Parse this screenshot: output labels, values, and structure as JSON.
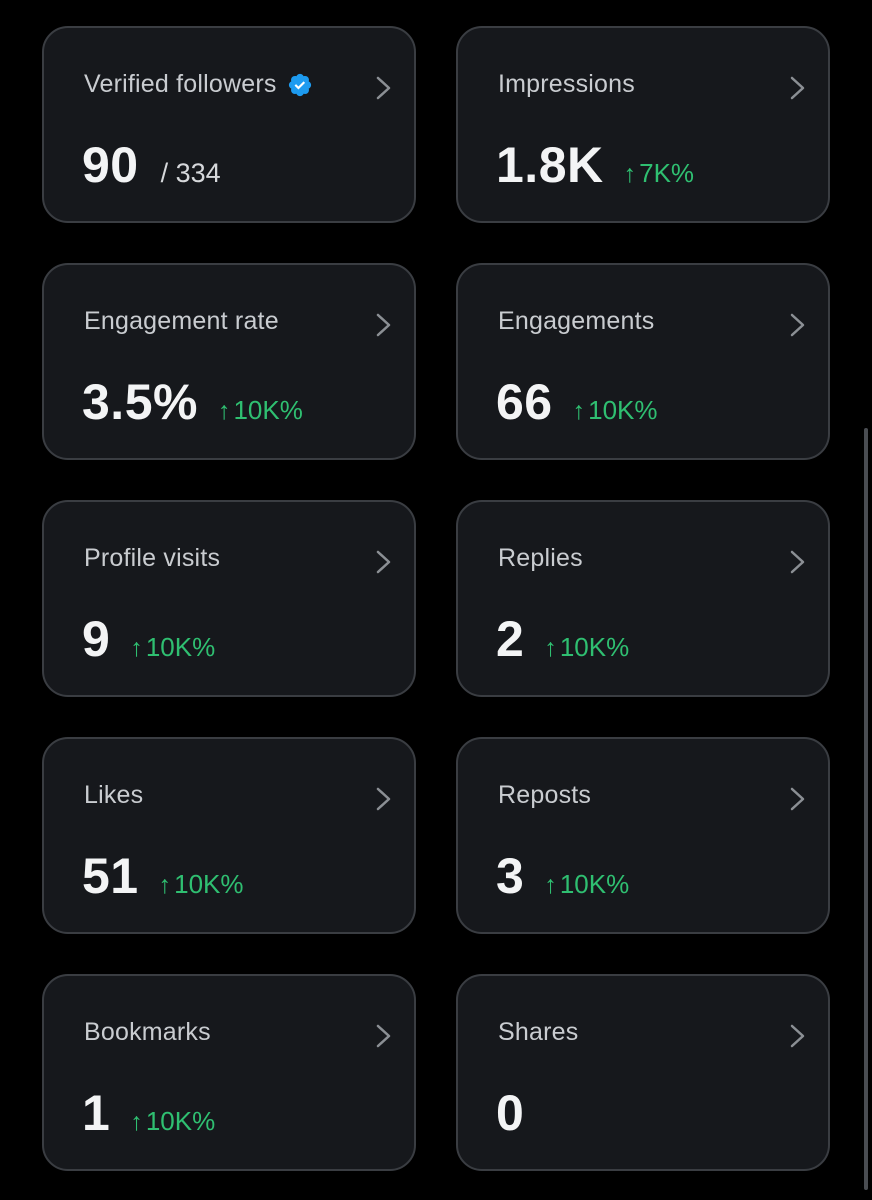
{
  "colors": {
    "background": "#000000",
    "card": "#16181c",
    "card_border": "#3a3d42",
    "positive": "#2fbf71",
    "verified": "#1d9bf0"
  },
  "cards": [
    {
      "label": "Verified followers",
      "value": "90",
      "total": "/ 334",
      "icon": "verified-badge-icon"
    },
    {
      "label": "Impressions",
      "value": "1.8K",
      "arrow": "↑",
      "delta": "7K%"
    },
    {
      "label": "Engagement rate",
      "value": "3.5%",
      "arrow": "↑",
      "delta": "10K%"
    },
    {
      "label": "Engagements",
      "value": "66",
      "arrow": "↑",
      "delta": "10K%"
    },
    {
      "label": "Profile visits",
      "value": "9",
      "arrow": "↑",
      "delta": "10K%"
    },
    {
      "label": "Replies",
      "value": "2",
      "arrow": "↑",
      "delta": "10K%"
    },
    {
      "label": "Likes",
      "value": "51",
      "arrow": "↑",
      "delta": "10K%"
    },
    {
      "label": "Reposts",
      "value": "3",
      "arrow": "↑",
      "delta": "10K%"
    },
    {
      "label": "Bookmarks",
      "value": "1",
      "arrow": "↑",
      "delta": "10K%"
    },
    {
      "label": "Shares",
      "value": "0"
    }
  ]
}
